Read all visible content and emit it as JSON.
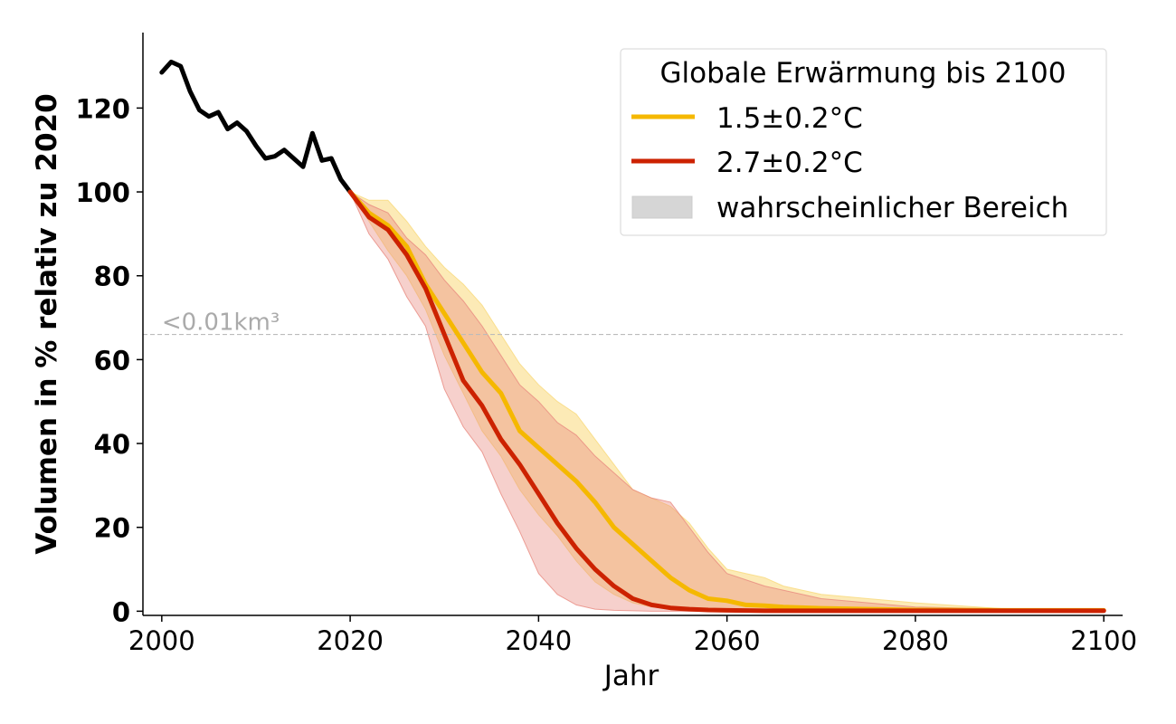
{
  "chart_data": {
    "type": "line",
    "xlabel": "Jahr",
    "ylabel": "Volumen in % relativ zu 2020",
    "xlim": [
      1998,
      2102
    ],
    "ylim": [
      -1,
      138
    ],
    "xticks": [
      2000,
      2020,
      2040,
      2060,
      2080,
      2100
    ],
    "yticks": [
      0,
      20,
      40,
      60,
      80,
      100,
      120
    ],
    "grid": false,
    "legend": {
      "title": "Globale Erwärmung bis 2100",
      "placement": "top-right",
      "entries": [
        "1.5±0.2°C",
        "2.7±0.2°C",
        "wahrscheinlicher Bereich"
      ]
    },
    "annotation": {
      "text": "<0.01km³",
      "y": 66
    },
    "colors": {
      "historical": "#000000",
      "low": "#f5b800",
      "high": "#cc2200",
      "band_low": "#f9d97a",
      "band_high": "#e88a80",
      "band_legend": "#d6d6d6",
      "threshold": "#bbbbbb"
    },
    "historical": {
      "name": "",
      "x": [
        2000,
        2001,
        2002,
        2003,
        2004,
        2005,
        2006,
        2007,
        2008,
        2009,
        2010,
        2011,
        2012,
        2013,
        2014,
        2015,
        2016,
        2017,
        2018,
        2019,
        2020
      ],
      "y": [
        128.5,
        131,
        130,
        124,
        119.5,
        118,
        119,
        115,
        116.5,
        114.5,
        111,
        108,
        108.5,
        110,
        108,
        106,
        114,
        107.5,
        108,
        103,
        100
      ]
    },
    "series": [
      {
        "name": "1.5±0.2°C",
        "x": [
          2020,
          2022,
          2024,
          2026,
          2028,
          2030,
          2032,
          2034,
          2036,
          2038,
          2040,
          2042,
          2044,
          2046,
          2048,
          2050,
          2052,
          2054,
          2056,
          2058,
          2060,
          2062,
          2064,
          2066,
          2070,
          2075,
          2080,
          2090,
          2100
        ],
        "y": [
          100,
          95,
          92,
          87,
          78,
          71,
          64,
          57,
          52,
          43,
          39,
          35,
          31,
          26,
          20,
          16,
          12,
          8,
          5,
          3,
          2.5,
          1.5,
          1.3,
          1,
          0.7,
          0.5,
          0.3,
          0.2,
          0.2
        ],
        "band_upper": [
          100,
          98,
          98,
          93,
          87,
          82,
          78,
          73,
          66,
          59,
          54,
          50,
          47,
          41,
          35,
          29,
          27,
          25,
          21,
          15,
          10,
          9,
          8,
          6,
          4,
          3,
          2,
          0.5,
          0.3
        ],
        "band_lower": [
          100,
          93,
          86,
          80,
          72,
          61,
          52,
          43,
          37,
          29,
          23,
          18,
          12,
          7,
          4,
          2,
          1,
          0.7,
          0.5,
          0.3,
          0.2,
          0.2,
          0.1,
          0.1,
          0.1,
          0,
          0,
          0,
          0
        ]
      },
      {
        "name": "2.7±0.2°C",
        "x": [
          2020,
          2022,
          2024,
          2026,
          2028,
          2030,
          2032,
          2034,
          2036,
          2038,
          2040,
          2042,
          2044,
          2046,
          2048,
          2050,
          2052,
          2054,
          2056,
          2058,
          2060,
          2064,
          2070,
          2080,
          2090,
          2100
        ],
        "y": [
          100,
          94,
          91,
          85,
          77,
          66,
          55,
          49,
          41,
          35,
          28,
          21,
          15,
          10,
          6,
          3,
          1.5,
          0.8,
          0.5,
          0.3,
          0.2,
          0.1,
          0.1,
          0.1,
          0.1,
          0.1
        ],
        "band_upper": [
          100,
          97,
          95,
          89,
          85,
          79,
          74,
          68,
          61,
          54,
          50,
          45,
          42,
          37,
          33,
          29,
          27,
          26,
          20,
          14,
          9,
          6,
          3,
          1,
          0.5,
          0.3
        ],
        "band_lower": [
          100,
          90,
          84,
          75,
          68,
          53,
          44,
          38,
          28,
          19,
          9,
          4,
          1.5,
          0.5,
          0.2,
          0.1,
          0,
          0,
          0,
          0,
          0,
          0,
          0,
          0,
          0,
          0
        ]
      }
    ]
  }
}
